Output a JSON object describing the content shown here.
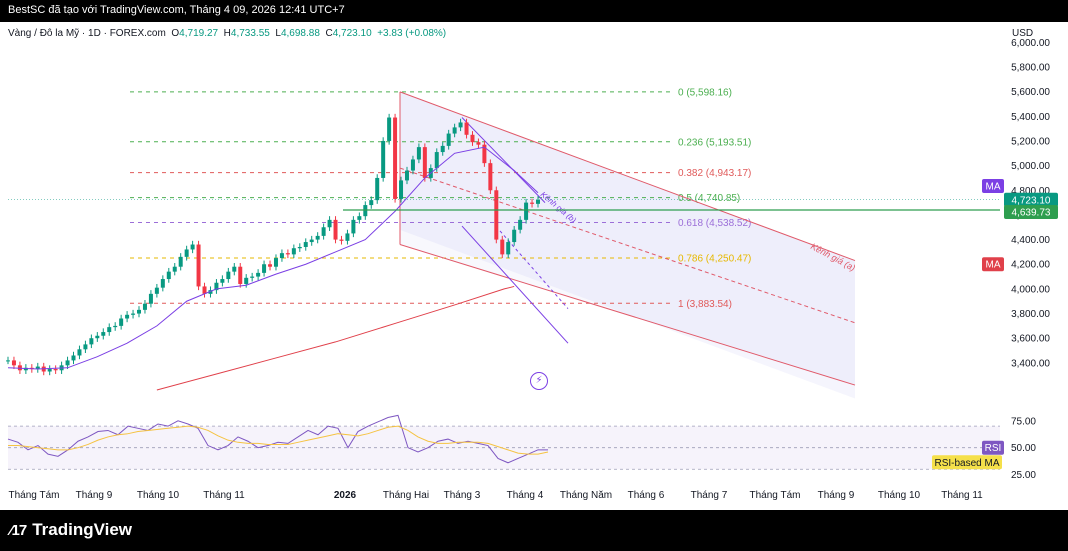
{
  "window": {
    "header_text": "BestSC đã tạo với TradingView.com, Tháng 4 09, 2026 12:41 UTC+7",
    "brand": "TradingView"
  },
  "legend": {
    "symbol": "Vàng / Đô la Mỹ · 1D · FOREX.com",
    "open_label": "O",
    "open": "4,719.27",
    "high_label": "H",
    "high": "4,733.55",
    "low_label": "L",
    "low": "4,698.88",
    "close_label": "C",
    "close": "4,723.10",
    "change": "+3.83 (+0.08%)",
    "currency": "USD"
  },
  "colors": {
    "up": "#089981",
    "down": "#f23645",
    "ma_purple": "#7b3fe4",
    "ma_red": "#e0404a",
    "fib_green": "#4caf50",
    "fib_red": "#e05a5a",
    "fib_purple": "#9c6fd8",
    "fib_yellow": "#e6b800",
    "rsi_line": "#7e57c2",
    "rsi_ma": "#f5c342",
    "channel": "#e05a6a"
  },
  "chart_data": {
    "type": "line",
    "title": "",
    "price_axis": {
      "ticks": [
        "6,000.00",
        "5,800.00",
        "5,600.00",
        "5,400.00",
        "5,200.00",
        "5,000.00",
        "4,800.00",
        "4,600.00",
        "4,400.00",
        "4,200.00",
        "4,000.00",
        "3,800.00",
        "3,600.00",
        "3,400.00"
      ],
      "ylim": [
        3180,
        6100
      ],
      "current_price": "4,723.10",
      "horizontal_level_price": "4,639.73"
    },
    "time_axis": {
      "ticks": [
        "Tháng Tám",
        "Tháng 9",
        "Tháng 10",
        "Tháng 11",
        "2026",
        "Tháng Hai",
        "Tháng 3",
        "Tháng 4",
        "Tháng Năm",
        "Tháng 6",
        "Tháng 7",
        "Tháng Tám",
        "Tháng 9",
        "Tháng 10",
        "Tháng 11"
      ]
    },
    "series": [
      {
        "name": "Vàng / Đô la Mỹ",
        "x": [
          0,
          6,
          12,
          18,
          24,
          30,
          36,
          42,
          48,
          54,
          60,
          66,
          72,
          78,
          84,
          90,
          96,
          102,
          108,
          114,
          120,
          126,
          132,
          138,
          144,
          150,
          156,
          162,
          168,
          174,
          180,
          186,
          192,
          198,
          204,
          210,
          216,
          222,
          228,
          234,
          240,
          246,
          252,
          258,
          264,
          270,
          276,
          282,
          288,
          294,
          300,
          306,
          312,
          318,
          324,
          330,
          336,
          342,
          348,
          354,
          360,
          366,
          372,
          378,
          384,
          390,
          396,
          402,
          408,
          414,
          420,
          426,
          432,
          438,
          444,
          450,
          456,
          462,
          468,
          474,
          480,
          486,
          492,
          498,
          504,
          510,
          516,
          522,
          528,
          534
        ],
        "y": [
          3420,
          3380,
          3340,
          3360,
          3350,
          3370,
          3330,
          3350,
          3340,
          3380,
          3420,
          3460,
          3510,
          3550,
          3600,
          3620,
          3650,
          3690,
          3700,
          3760,
          3790,
          3800,
          3830,
          3880,
          3960,
          4010,
          4080,
          4140,
          4180,
          4260,
          4320,
          4360,
          4020,
          3960,
          3990,
          4050,
          4080,
          4140,
          4180,
          4040,
          4090,
          4100,
          4130,
          4200,
          4180,
          4250,
          4290,
          4280,
          4330,
          4340,
          4380,
          4400,
          4430,
          4500,
          4560,
          4400,
          4390,
          4450,
          4560,
          4590,
          4680,
          4720,
          4900,
          5200,
          5390,
          4730,
          4880,
          4960,
          5050,
          5150,
          4900,
          4980,
          5110,
          5160,
          5260,
          5310,
          5350,
          5250,
          5190,
          5170,
          5020,
          4800,
          4400,
          4280,
          4380,
          4480,
          4560,
          4700,
          4690,
          4723
        ]
      },
      {
        "name": "MA",
        "x": [
          0,
          30,
          60,
          90,
          120,
          150,
          180,
          210,
          240,
          270,
          300,
          330,
          360,
          390,
          420,
          450,
          480,
          510,
          534
        ],
        "y": [
          3360,
          3350,
          3360,
          3450,
          3560,
          3700,
          3900,
          4000,
          4030,
          4120,
          4200,
          4300,
          4400,
          4630,
          4900,
          5100,
          5150,
          4960,
          4780
        ]
      },
      {
        "name": "MA",
        "x": [
          150,
          210,
          270,
          330,
          390,
          450,
          500,
          510
        ],
        "y": [
          3180,
          3310,
          3440,
          3570,
          3720,
          3870,
          4000,
          4020
        ]
      }
    ],
    "fibonacci": [
      {
        "level": "0",
        "price": "5,598.16",
        "label": "0 (5,598.16)"
      },
      {
        "level": "0.236",
        "price": "5,193.51",
        "label": "0.236 (5,193.51)"
      },
      {
        "level": "0.382",
        "price": "4,943.17",
        "label": "0.382 (4,943.17)"
      },
      {
        "level": "0.5",
        "price": "4,740.85",
        "label": "0.5 (4,740.85)"
      },
      {
        "level": "0.618",
        "price": "4,538.52",
        "label": "0.618 (4,538.52)"
      },
      {
        "level": "0.786",
        "price": "4,250.47",
        "label": "0.786 (4,250.47)"
      },
      {
        "level": "1",
        "price": "3,883.54",
        "label": "1 (3,883.54)"
      }
    ],
    "channels": [
      {
        "name": "Kênh giá (a)",
        "label": "Kênh giá (a)"
      },
      {
        "name": "Kênh giá (b)",
        "label": "Kênh giá (b)"
      }
    ],
    "badges": [
      {
        "id": "ma-top",
        "text": "MA"
      },
      {
        "id": "ma-bottom",
        "text": "MA"
      },
      {
        "id": "price-current",
        "text": "4,723.10"
      },
      {
        "id": "price-level",
        "text": "4,639.73"
      }
    ],
    "rsi": {
      "ticks": [
        "75.00",
        "50.00",
        "25.00"
      ],
      "ylim": [
        20,
        85
      ],
      "badge_rsi": "RSI",
      "badge_ma": "RSI-based MA",
      "x": [
        0,
        10,
        20,
        30,
        40,
        50,
        60,
        70,
        80,
        90,
        100,
        110,
        120,
        130,
        140,
        150,
        160,
        170,
        180,
        190,
        200,
        210,
        220,
        230,
        240,
        250,
        260,
        270,
        280,
        290,
        300,
        310,
        320,
        330,
        340,
        350,
        360,
        370,
        380,
        390,
        400,
        410,
        420,
        430,
        440,
        450,
        460,
        470,
        480,
        490,
        500,
        510,
        520,
        530,
        540
      ],
      "rsi_values": [
        58,
        55,
        48,
        52,
        44,
        42,
        48,
        56,
        60,
        65,
        66,
        62,
        70,
        68,
        66,
        72,
        70,
        75,
        72,
        68,
        52,
        48,
        52,
        60,
        56,
        50,
        52,
        55,
        54,
        60,
        66,
        62,
        70,
        68,
        50,
        65,
        70,
        74,
        78,
        80,
        50,
        46,
        50,
        56,
        58,
        54,
        56,
        54,
        52,
        40,
        36,
        40,
        44,
        48,
        48
      ],
      "ma_values": [
        52,
        52,
        51,
        50,
        49,
        48,
        48,
        50,
        53,
        57,
        60,
        62,
        63,
        65,
        66,
        67,
        68,
        69,
        70,
        69,
        66,
        61,
        57,
        55,
        54,
        54,
        53,
        53,
        53,
        55,
        57,
        59,
        61,
        63,
        62,
        61,
        63,
        66,
        69,
        70,
        66,
        60,
        56,
        54,
        54,
        55,
        55,
        55,
        54,
        51,
        48,
        45,
        44,
        44,
        46
      ]
    }
  }
}
